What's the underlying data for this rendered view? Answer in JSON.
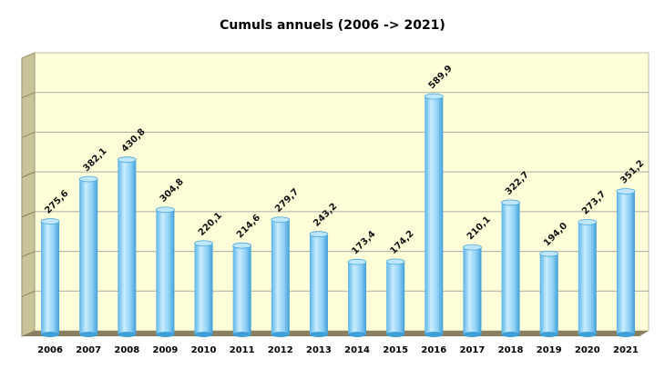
{
  "chart_data": {
    "type": "bar",
    "title": "Cumuls annuels (2006 -> 2021)",
    "categories": [
      "2006",
      "2007",
      "2008",
      "2009",
      "2010",
      "2011",
      "2012",
      "2013",
      "2014",
      "2015",
      "2016",
      "2017",
      "2018",
      "2019",
      "2020",
      "2021"
    ],
    "values": [
      275.6,
      382.1,
      430.8,
      304.8,
      220.1,
      214.6,
      279.7,
      243.2,
      173.4,
      174.2,
      589.9,
      210.1,
      322.7,
      194.0,
      273.7,
      351.2
    ],
    "value_labels": [
      "275,6",
      "382,1",
      "430,8",
      "304,8",
      "220,1",
      "214,6",
      "279,7",
      "243,2",
      "173,4",
      "174,2",
      "589,9",
      "210,1",
      "322,7",
      "194,0",
      "273,7",
      "351,2"
    ],
    "xlabel": "",
    "ylabel": "",
    "ylim": [
      0,
      700
    ],
    "grid": true,
    "legend": "none",
    "colors": {
      "bar": "#8fd0f5",
      "bar_highlight": "#d6f1ff",
      "bar_shadow": "#3f9fd8",
      "plot_bg": "#fefed8",
      "floor": "#8a8060",
      "wall_side": "#c8c498",
      "gridline": "#aaaaaa"
    }
  }
}
